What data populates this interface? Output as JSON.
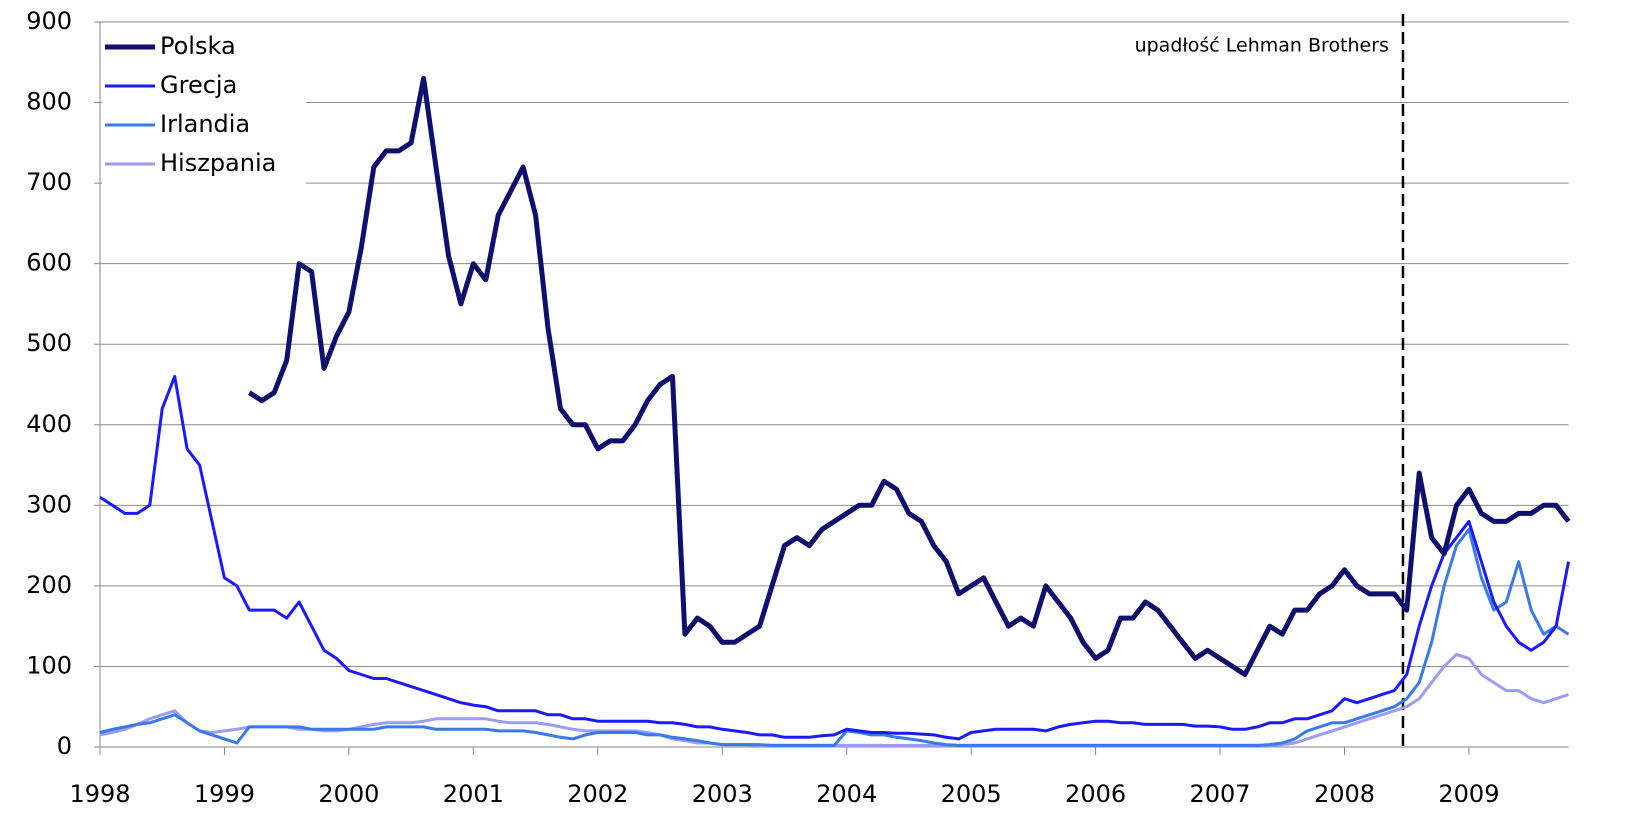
{
  "chart_data": {
    "type": "line",
    "x": [
      1998.0,
      1998.1,
      1998.2,
      1998.3,
      1998.4,
      1998.5,
      1998.6,
      1998.7,
      1998.8,
      1998.9,
      1999.0,
      1999.1,
      1999.2,
      1999.3,
      1999.4,
      1999.5,
      1999.6,
      1999.7,
      1999.8,
      1999.9,
      2000.0,
      2000.1,
      2000.2,
      2000.3,
      2000.4,
      2000.5,
      2000.6,
      2000.7,
      2000.8,
      2000.9,
      2001.0,
      2001.1,
      2001.2,
      2001.3,
      2001.4,
      2001.5,
      2001.6,
      2001.7,
      2001.8,
      2001.9,
      2002.0,
      2002.1,
      2002.2,
      2002.3,
      2002.4,
      2002.5,
      2002.6,
      2002.7,
      2002.8,
      2002.9,
      2003.0,
      2003.1,
      2003.2,
      2003.3,
      2003.4,
      2003.5,
      2003.6,
      2003.7,
      2003.8,
      2003.9,
      2004.0,
      2004.1,
      2004.2,
      2004.3,
      2004.4,
      2004.5,
      2004.6,
      2004.7,
      2004.8,
      2004.9,
      2005.0,
      2005.1,
      2005.2,
      2005.3,
      2005.4,
      2005.5,
      2005.6,
      2005.7,
      2005.8,
      2005.9,
      2006.0,
      2006.1,
      2006.2,
      2006.3,
      2006.4,
      2006.5,
      2006.6,
      2006.7,
      2006.8,
      2006.9,
      2007.0,
      2007.1,
      2007.2,
      2007.3,
      2007.4,
      2007.5,
      2007.6,
      2007.7,
      2007.8,
      2007.9,
      2008.0,
      2008.1,
      2008.2,
      2008.3,
      2008.4,
      2008.5,
      2008.6,
      2008.7,
      2008.8,
      2008.9,
      2009.0,
      2009.1,
      2009.2,
      2009.3,
      2009.4,
      2009.5,
      2009.6,
      2009.7,
      2009.8
    ],
    "series": [
      {
        "name": "Polska",
        "color": "#0f0f6e",
        "width": 5,
        "values": [
          null,
          null,
          null,
          null,
          null,
          null,
          null,
          null,
          null,
          null,
          null,
          null,
          440,
          430,
          440,
          480,
          600,
          590,
          470,
          510,
          540,
          620,
          720,
          740,
          740,
          750,
          830,
          720,
          610,
          550,
          600,
          580,
          660,
          690,
          720,
          660,
          520,
          420,
          400,
          400,
          370,
          380,
          380,
          400,
          430,
          450,
          460,
          140,
          160,
          150,
          130,
          130,
          140,
          150,
          200,
          250,
          260,
          250,
          270,
          280,
          290,
          300,
          300,
          330,
          320,
          290,
          280,
          250,
          230,
          190,
          200,
          210,
          180,
          150,
          160,
          150,
          200,
          180,
          160,
          130,
          110,
          120,
          160,
          160,
          180,
          170,
          150,
          130,
          110,
          120,
          110,
          100,
          90,
          120,
          150,
          140,
          170,
          170,
          190,
          200,
          220,
          200,
          190,
          190,
          190,
          170,
          340,
          260,
          240,
          300,
          320,
          290,
          280,
          280,
          290,
          290,
          300,
          300,
          280
        ]
      },
      {
        "name": "Grecja",
        "color": "#1a1aff",
        "width": 3,
        "values": [
          310,
          300,
          290,
          290,
          300,
          420,
          460,
          370,
          350,
          280,
          210,
          200,
          170,
          170,
          170,
          160,
          180,
          150,
          120,
          110,
          95,
          90,
          85,
          85,
          80,
          75,
          70,
          65,
          60,
          55,
          52,
          50,
          45,
          45,
          45,
          45,
          40,
          40,
          35,
          35,
          32,
          32,
          32,
          32,
          32,
          30,
          30,
          28,
          25,
          25,
          22,
          20,
          18,
          15,
          15,
          12,
          12,
          12,
          14,
          15,
          22,
          20,
          18,
          18,
          17,
          17,
          16,
          15,
          12,
          10,
          18,
          20,
          22,
          22,
          22,
          22,
          20,
          25,
          28,
          30,
          32,
          32,
          30,
          30,
          28,
          28,
          28,
          28,
          26,
          26,
          25,
          22,
          22,
          25,
          30,
          30,
          35,
          35,
          40,
          45,
          60,
          55,
          60,
          65,
          70,
          90,
          150,
          200,
          240,
          260,
          280,
          230,
          180,
          150,
          130,
          120,
          130,
          150,
          230
        ]
      },
      {
        "name": "Irlandia",
        "color": "#3a7ae8",
        "width": 3,
        "values": [
          18,
          22,
          25,
          28,
          30,
          35,
          40,
          30,
          20,
          15,
          10,
          5,
          25,
          25,
          25,
          25,
          25,
          22,
          22,
          22,
          22,
          22,
          22,
          25,
          25,
          25,
          25,
          22,
          22,
          22,
          22,
          22,
          20,
          20,
          20,
          18,
          15,
          12,
          10,
          15,
          18,
          18,
          18,
          18,
          15,
          15,
          12,
          10,
          8,
          5,
          3,
          3,
          3,
          3,
          2,
          2,
          2,
          2,
          2,
          2,
          20,
          18,
          15,
          15,
          12,
          10,
          8,
          5,
          3,
          2,
          2,
          2,
          2,
          2,
          2,
          2,
          2,
          2,
          2,
          2,
          2,
          2,
          2,
          2,
          2,
          2,
          2,
          2,
          2,
          2,
          2,
          2,
          2,
          2,
          3,
          5,
          10,
          20,
          25,
          30,
          30,
          35,
          40,
          45,
          50,
          60,
          80,
          130,
          200,
          250,
          270,
          210,
          170,
          180,
          230,
          170,
          140,
          150,
          140
        ]
      },
      {
        "name": "Hiszpania",
        "color": "#9c9cf7",
        "width": 3,
        "values": [
          15,
          18,
          22,
          28,
          35,
          40,
          45,
          30,
          20,
          18,
          20,
          22,
          25,
          25,
          25,
          25,
          22,
          22,
          20,
          20,
          22,
          25,
          28,
          30,
          30,
          30,
          32,
          35,
          35,
          35,
          35,
          35,
          32,
          30,
          30,
          30,
          28,
          25,
          22,
          20,
          20,
          20,
          20,
          20,
          18,
          15,
          10,
          8,
          5,
          5,
          3,
          3,
          3,
          2,
          2,
          2,
          2,
          2,
          2,
          2,
          2,
          2,
          2,
          2,
          2,
          2,
          2,
          2,
          2,
          2,
          2,
          2,
          2,
          2,
          2,
          2,
          2,
          2,
          2,
          2,
          2,
          2,
          2,
          2,
          2,
          2,
          2,
          2,
          2,
          2,
          2,
          2,
          2,
          2,
          2,
          3,
          5,
          10,
          15,
          20,
          25,
          30,
          35,
          40,
          45,
          50,
          60,
          80,
          100,
          115,
          110,
          90,
          80,
          70,
          70,
          60,
          55,
          60,
          65
        ]
      }
    ],
    "xlim": [
      1998,
      2009.8
    ],
    "xticks": [
      1998,
      1999,
      2000,
      2001,
      2002,
      2003,
      2004,
      2005,
      2006,
      2007,
      2008,
      2009
    ],
    "ylim": [
      0,
      900
    ],
    "yticks": [
      0,
      100,
      200,
      300,
      400,
      500,
      600,
      700,
      800,
      900
    ],
    "grid": true,
    "legend": "upper left",
    "annotation": {
      "text": "upadłość Lehman Brothers",
      "x": 2008.47
    }
  }
}
